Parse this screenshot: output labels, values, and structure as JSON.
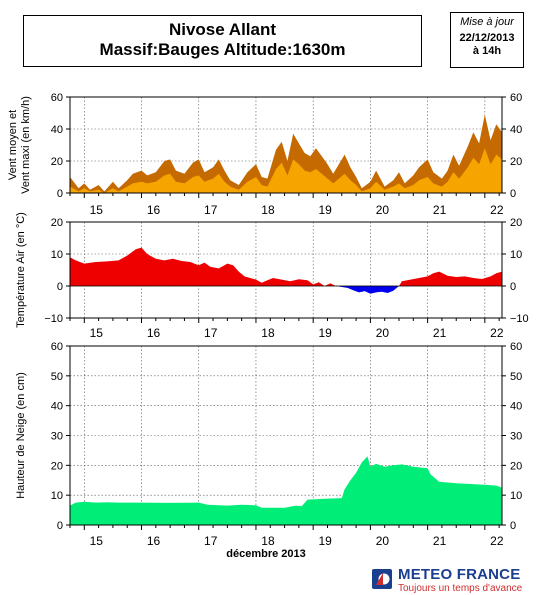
{
  "header": {
    "title_line1": "Nivose Allant",
    "title_line2": "Massif:Bauges Altitude:1630m"
  },
  "update_stamp": {
    "label": "Mise à jour",
    "date": "22/12/2013",
    "time": "à 14h"
  },
  "branding": {
    "name": "METEO FRANCE",
    "tagline": "Toujours un temps d'avance",
    "colors": {
      "blue": "#1b3f8f",
      "red": "#d02d2d"
    }
  },
  "x_axis": {
    "label": "décembre 2013",
    "day_labels": [
      "15",
      "16",
      "17",
      "18",
      "19",
      "20",
      "21",
      "22"
    ],
    "range": [
      14.75,
      22.3
    ]
  },
  "chart_data": [
    {
      "type": "area",
      "ylabel": "Vent moyen et\nVent maxi (en km/h)",
      "ylim": [
        0,
        60
      ],
      "yticks": [
        0,
        20,
        40,
        60
      ],
      "grid": true,
      "colors": {
        "max": "#c46a00",
        "mean": "#f6a400"
      },
      "series": [
        {
          "key": "max",
          "values": [
            [
              14.75,
              10
            ],
            [
              14.9,
              3
            ],
            [
              15.0,
              6
            ],
            [
              15.1,
              2
            ],
            [
              15.25,
              5
            ],
            [
              15.35,
              1
            ],
            [
              15.5,
              7
            ],
            [
              15.6,
              3
            ],
            [
              15.75,
              8
            ],
            [
              15.85,
              12
            ],
            [
              16.0,
              14
            ],
            [
              16.1,
              11
            ],
            [
              16.25,
              13
            ],
            [
              16.4,
              20
            ],
            [
              16.5,
              21
            ],
            [
              16.6,
              14
            ],
            [
              16.75,
              12
            ],
            [
              16.9,
              19
            ],
            [
              17.0,
              21
            ],
            [
              17.1,
              13
            ],
            [
              17.25,
              16
            ],
            [
              17.35,
              21
            ],
            [
              17.45,
              14
            ],
            [
              17.55,
              8
            ],
            [
              17.7,
              5
            ],
            [
              17.85,
              13
            ],
            [
              18.0,
              18
            ],
            [
              18.1,
              10
            ],
            [
              18.2,
              9
            ],
            [
              18.35,
              27
            ],
            [
              18.45,
              32
            ],
            [
              18.55,
              20
            ],
            [
              18.65,
              37
            ],
            [
              18.75,
              31
            ],
            [
              18.85,
              25
            ],
            [
              18.95,
              23
            ],
            [
              19.05,
              28
            ],
            [
              19.15,
              23
            ],
            [
              19.25,
              18
            ],
            [
              19.35,
              12
            ],
            [
              19.45,
              18
            ],
            [
              19.55,
              24
            ],
            [
              19.65,
              16
            ],
            [
              19.75,
              10
            ],
            [
              19.85,
              3
            ],
            [
              20.0,
              7
            ],
            [
              20.1,
              14
            ],
            [
              20.25,
              4
            ],
            [
              20.4,
              8
            ],
            [
              20.5,
              13
            ],
            [
              20.6,
              6
            ],
            [
              20.75,
              11
            ],
            [
              20.85,
              16
            ],
            [
              21.0,
              21
            ],
            [
              21.1,
              13
            ],
            [
              21.25,
              9
            ],
            [
              21.35,
              14
            ],
            [
              21.45,
              24
            ],
            [
              21.55,
              17
            ],
            [
              21.7,
              29
            ],
            [
              21.8,
              38
            ],
            [
              21.9,
              31
            ],
            [
              22.0,
              49
            ],
            [
              22.1,
              33
            ],
            [
              22.2,
              43
            ],
            [
              22.3,
              38
            ]
          ]
        },
        {
          "key": "mean",
          "values": [
            [
              14.75,
              4
            ],
            [
              14.9,
              1
            ],
            [
              15.0,
              3
            ],
            [
              15.1,
              1
            ],
            [
              15.25,
              2
            ],
            [
              15.35,
              0
            ],
            [
              15.5,
              3
            ],
            [
              15.6,
              1
            ],
            [
              15.75,
              4
            ],
            [
              15.85,
              6
            ],
            [
              16.0,
              7
            ],
            [
              16.1,
              6
            ],
            [
              16.25,
              7
            ],
            [
              16.4,
              11
            ],
            [
              16.5,
              12
            ],
            [
              16.6,
              7
            ],
            [
              16.75,
              6
            ],
            [
              16.9,
              10
            ],
            [
              17.0,
              11
            ],
            [
              17.1,
              7
            ],
            [
              17.25,
              9
            ],
            [
              17.35,
              12
            ],
            [
              17.45,
              7
            ],
            [
              17.55,
              4
            ],
            [
              17.7,
              2
            ],
            [
              17.85,
              7
            ],
            [
              18.0,
              10
            ],
            [
              18.1,
              5
            ],
            [
              18.2,
              4
            ],
            [
              18.35,
              15
            ],
            [
              18.45,
              19
            ],
            [
              18.55,
              11
            ],
            [
              18.65,
              21
            ],
            [
              18.75,
              18
            ],
            [
              18.85,
              14
            ],
            [
              18.95,
              13
            ],
            [
              19.05,
              15
            ],
            [
              19.15,
              12
            ],
            [
              19.25,
              9
            ],
            [
              19.35,
              6
            ],
            [
              19.45,
              9
            ],
            [
              19.55,
              12
            ],
            [
              19.65,
              8
            ],
            [
              19.75,
              5
            ],
            [
              19.85,
              1
            ],
            [
              20.0,
              3
            ],
            [
              20.1,
              7
            ],
            [
              20.25,
              2
            ],
            [
              20.4,
              4
            ],
            [
              20.5,
              6
            ],
            [
              20.6,
              3
            ],
            [
              20.75,
              5
            ],
            [
              20.85,
              8
            ],
            [
              21.0,
              10
            ],
            [
              21.1,
              6
            ],
            [
              21.25,
              4
            ],
            [
              21.35,
              7
            ],
            [
              21.45,
              13
            ],
            [
              21.55,
              9
            ],
            [
              21.7,
              16
            ],
            [
              21.8,
              22
            ],
            [
              21.9,
              18
            ],
            [
              22.0,
              28
            ],
            [
              22.1,
              18
            ],
            [
              22.2,
              24
            ],
            [
              22.3,
              21
            ]
          ]
        }
      ]
    },
    {
      "type": "area",
      "ylabel": "Température Air (en °C)",
      "ylim": [
        -10,
        20
      ],
      "yticks": [
        -10,
        0,
        10,
        20
      ],
      "grid": true,
      "colors": {
        "positive": "#ee0000",
        "negative": "#0000ee"
      },
      "series": [
        {
          "key": "temperature",
          "values": [
            [
              14.75,
              9
            ],
            [
              14.85,
              8
            ],
            [
              15.0,
              7
            ],
            [
              15.2,
              7.5
            ],
            [
              15.4,
              7.7
            ],
            [
              15.6,
              8
            ],
            [
              15.75,
              9.5
            ],
            [
              15.9,
              11.5
            ],
            [
              16.0,
              12
            ],
            [
              16.1,
              10
            ],
            [
              16.25,
              8.5
            ],
            [
              16.4,
              8
            ],
            [
              16.55,
              8.5
            ],
            [
              16.7,
              7.8
            ],
            [
              16.85,
              7.5
            ],
            [
              17.0,
              6.5
            ],
            [
              17.1,
              7.3
            ],
            [
              17.2,
              6
            ],
            [
              17.35,
              5.5
            ],
            [
              17.5,
              7
            ],
            [
              17.6,
              6.5
            ],
            [
              17.7,
              4.5
            ],
            [
              17.8,
              3
            ],
            [
              17.9,
              2.5
            ],
            [
              18.0,
              2
            ],
            [
              18.1,
              1
            ],
            [
              18.2,
              1.8
            ],
            [
              18.3,
              2.5
            ],
            [
              18.45,
              2
            ],
            [
              18.6,
              1.5
            ],
            [
              18.75,
              2.1
            ],
            [
              18.9,
              1.8
            ],
            [
              19.0,
              0.5
            ],
            [
              19.1,
              1.2
            ],
            [
              19.2,
              0
            ],
            [
              19.3,
              0.8
            ],
            [
              19.4,
              0
            ],
            [
              19.5,
              -0.3
            ],
            [
              19.6,
              -0.6
            ],
            [
              19.7,
              -1.3
            ],
            [
              19.8,
              -2
            ],
            [
              19.9,
              -1.6
            ],
            [
              20.0,
              -2.4
            ],
            [
              20.1,
              -2
            ],
            [
              20.2,
              -1.8
            ],
            [
              20.3,
              -2.2
            ],
            [
              20.4,
              -1.5
            ],
            [
              20.5,
              0
            ],
            [
              20.55,
              1.5
            ],
            [
              20.7,
              2
            ],
            [
              20.85,
              2.5
            ],
            [
              21.0,
              3
            ],
            [
              21.1,
              4
            ],
            [
              21.2,
              4.5
            ],
            [
              21.35,
              3.2
            ],
            [
              21.5,
              2.8
            ],
            [
              21.65,
              3
            ],
            [
              21.8,
              2.5
            ],
            [
              21.95,
              2.2
            ],
            [
              22.1,
              3
            ],
            [
              22.2,
              4
            ],
            [
              22.3,
              4.5
            ]
          ]
        }
      ]
    },
    {
      "type": "area",
      "ylabel": "Hauteur de Neige (en cm)",
      "ylim": [
        0,
        60
      ],
      "yticks": [
        0,
        10,
        20,
        30,
        40,
        50,
        60
      ],
      "grid": true,
      "colors": {
        "fill": "#00ee77"
      },
      "series": [
        {
          "key": "snow",
          "values": [
            [
              14.75,
              6.5
            ],
            [
              14.85,
              7.5
            ],
            [
              15.0,
              7.8
            ],
            [
              15.2,
              7.5
            ],
            [
              15.4,
              7.6
            ],
            [
              15.6,
              7.5
            ],
            [
              16.0,
              7.5
            ],
            [
              16.5,
              7.4
            ],
            [
              17.0,
              7.5
            ],
            [
              17.15,
              6.8
            ],
            [
              17.5,
              6.5
            ],
            [
              17.75,
              6.8
            ],
            [
              18.0,
              6.6
            ],
            [
              18.1,
              5.8
            ],
            [
              18.5,
              5.8
            ],
            [
              18.7,
              6.5
            ],
            [
              18.8,
              6.3
            ],
            [
              18.9,
              8.5
            ],
            [
              19.2,
              8.8
            ],
            [
              19.5,
              9
            ],
            [
              19.55,
              12
            ],
            [
              19.65,
              15
            ],
            [
              19.75,
              17.5
            ],
            [
              19.85,
              21
            ],
            [
              19.95,
              23
            ],
            [
              20.0,
              19.5
            ],
            [
              20.1,
              20.5
            ],
            [
              20.25,
              19.5
            ],
            [
              20.4,
              20
            ],
            [
              20.55,
              20.3
            ],
            [
              20.75,
              19.5
            ],
            [
              21.0,
              19
            ],
            [
              21.05,
              17
            ],
            [
              21.2,
              14.5
            ],
            [
              21.5,
              14
            ],
            [
              22.0,
              13.5
            ],
            [
              22.2,
              13.2
            ],
            [
              22.3,
              12.5
            ]
          ]
        }
      ]
    }
  ]
}
